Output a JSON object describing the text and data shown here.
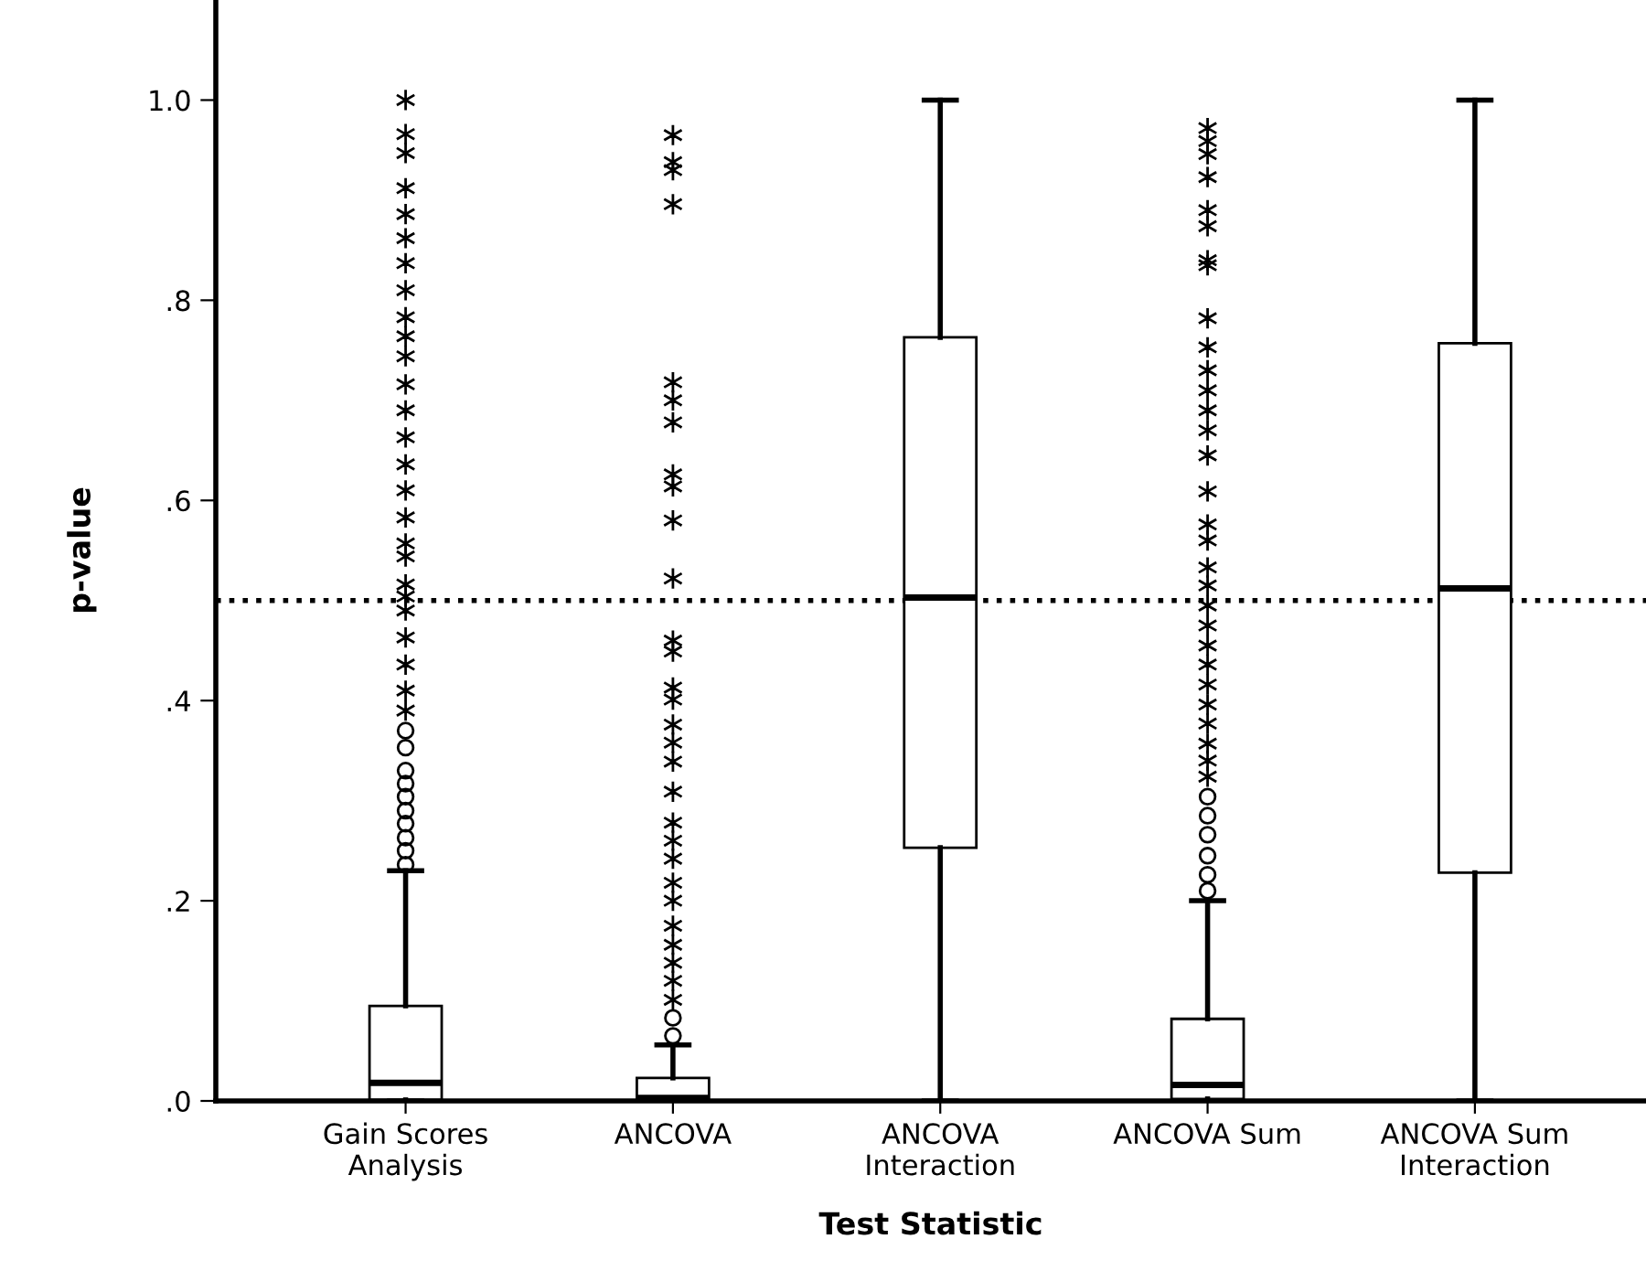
{
  "chart_data": {
    "type": "box",
    "categories": [
      "Gain Scores\nAnalysis",
      "ANCOVA",
      "ANCOVA\nInteraction",
      "ANCOVA Sum",
      "ANCOVA Sum\nInteraction"
    ],
    "xlabel": "Test Statistic",
    "ylabel": "p-value",
    "ylim": [
      0,
      1.1
    ],
    "yticks": [
      {
        "value": 0,
        "label": ".0"
      },
      {
        "value": 0.2,
        "label": ".2"
      },
      {
        "value": 0.4,
        "label": ".4"
      },
      {
        "value": 0.6,
        "label": ".6"
      },
      {
        "value": 0.8,
        "label": ".8"
      },
      {
        "value": 1.0,
        "label": "1.0"
      }
    ],
    "boxes": [
      {
        "low": 0,
        "q1": 0.001,
        "median": 0.018,
        "q3": 0.095,
        "high": 0.23,
        "outliers": [
          1.0,
          0.966,
          0.947,
          0.912,
          0.886,
          0.862,
          0.837,
          0.81,
          0.783,
          0.764,
          0.744,
          0.716,
          0.69,
          0.663,
          0.636,
          0.61,
          0.583,
          0.557,
          0.544,
          0.516,
          0.504,
          0.49,
          0.463,
          0.436,
          0.41,
          0.39,
          0.37,
          0.353,
          0.33,
          0.317,
          0.304,
          0.29,
          0.277,
          0.263,
          0.25,
          0.236
        ]
      },
      {
        "low": 0,
        "q1": 0,
        "median": 0.003,
        "q3": 0.023,
        "high": 0.056,
        "outliers": [
          0.965,
          0.938,
          0.93,
          0.896,
          0.718,
          0.7,
          0.678,
          0.626,
          0.614,
          0.58,
          0.522,
          0.46,
          0.449,
          0.413,
          0.401,
          0.376,
          0.358,
          0.339,
          0.309,
          0.278,
          0.26,
          0.242,
          0.218,
          0.2,
          0.175,
          0.156,
          0.138,
          0.12,
          0.101,
          0.083,
          0.065
        ]
      },
      {
        "low": 0,
        "q1": 0.253,
        "median": 0.503,
        "q3": 0.763,
        "high": 1.0
      },
      {
        "low": 0,
        "q1": 0.002,
        "median": 0.016,
        "q3": 0.082,
        "high": 0.2,
        "outliers": [
          0.972,
          0.959,
          0.946,
          0.923,
          0.89,
          0.874,
          0.84,
          0.835,
          0.782,
          0.753,
          0.73,
          0.71,
          0.69,
          0.67,
          0.645,
          0.609,
          0.576,
          0.56,
          0.533,
          0.515,
          0.495,
          0.475,
          0.455,
          0.436,
          0.416,
          0.396,
          0.377,
          0.357,
          0.34,
          0.324,
          0.304,
          0.285,
          0.266,
          0.245,
          0.226,
          0.21
        ]
      },
      {
        "low": 0,
        "q1": 0.228,
        "median": 0.512,
        "q3": 0.757,
        "high": 1.0
      }
    ],
    "ref_lines": [
      {
        "axis": "y",
        "value": 0.5,
        "color": "#000000",
        "line_style": "dotted"
      }
    ],
    "grid": false,
    "legend": false
  }
}
